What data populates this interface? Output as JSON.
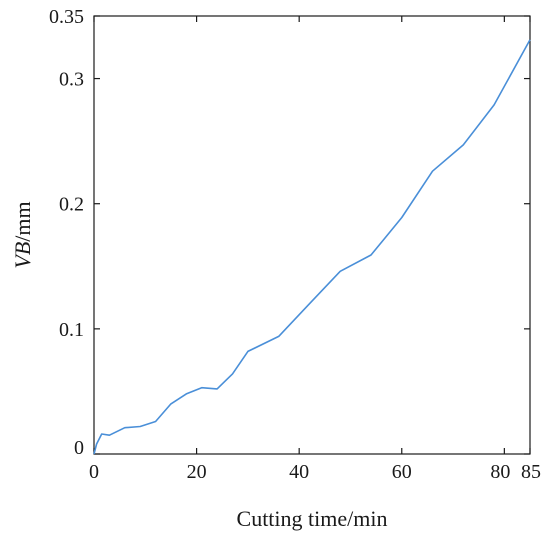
{
  "chart_data": {
    "type": "line",
    "title": "",
    "xlabel": "Cutting time/min",
    "ylabel_italic": "VB",
    "ylabel_unit": "/mm",
    "xlim": [
      0,
      85
    ],
    "ylim": [
      0,
      0.35
    ],
    "x_ticks": [
      {
        "value": 0,
        "label": "0"
      },
      {
        "value": 20,
        "label": "20"
      },
      {
        "value": 40,
        "label": "40"
      },
      {
        "value": 60,
        "label": "60"
      },
      {
        "value": 80,
        "label": "80"
      },
      {
        "value": 85,
        "label": "85"
      }
    ],
    "y_ticks": [
      {
        "value": 0,
        "label": "0"
      },
      {
        "value": 0.1,
        "label": "0.1"
      },
      {
        "value": 0.2,
        "label": "0.2"
      },
      {
        "value": 0.3,
        "label": "0.3"
      },
      {
        "value": 0.35,
        "label": "0.35"
      }
    ],
    "grid": false,
    "series": [
      {
        "color": "#4a8fd8",
        "x": [
          0,
          0.5,
          1.5,
          3,
          6,
          9,
          12,
          15,
          18,
          21,
          24,
          27,
          30,
          36,
          42,
          48,
          54,
          60,
          66,
          72,
          78,
          85
        ],
        "y": [
          0,
          0.008,
          0.016,
          0.015,
          0.021,
          0.022,
          0.026,
          0.04,
          0.048,
          0.053,
          0.052,
          0.064,
          0.082,
          0.094,
          0.12,
          0.146,
          0.159,
          0.189,
          0.226,
          0.247,
          0.279,
          0.331
        ]
      }
    ]
  }
}
